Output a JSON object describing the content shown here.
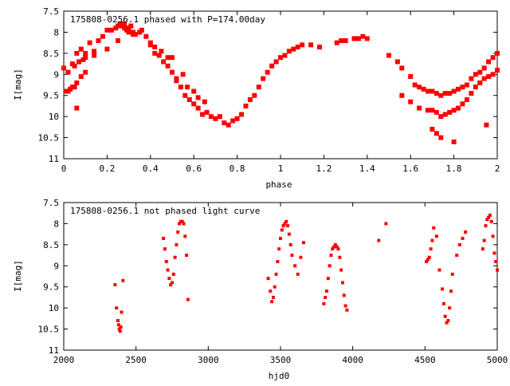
{
  "chart_data": [
    {
      "type": "scatter",
      "title": "175808-0256.1 phased with P=174.00day",
      "xlabel": "phase",
      "ylabel": "I[mag]",
      "xlim": [
        0,
        2
      ],
      "ylim": [
        7.5,
        11
      ],
      "y_inverted": true,
      "grid": false,
      "marker_color": "#ff0000",
      "x_ticks": [
        "0",
        "0.2",
        "0.4",
        "0.6",
        "0.8",
        "1",
        "1.2",
        "1.4",
        "1.6",
        "1.8",
        "2"
      ],
      "y_ticks": [
        "7.5",
        "8",
        "8.5",
        "9",
        "9.5",
        "10",
        "10.5",
        "11"
      ],
      "series": [
        {
          "x": [
            0.0,
            0.01,
            0.02,
            0.03,
            0.04,
            0.05,
            0.06,
            0.07,
            0.08,
            0.09,
            0.1,
            0.12,
            0.14,
            0.16,
            0.18,
            0.2,
            0.22,
            0.24,
            0.25,
            0.26,
            0.27,
            0.28,
            0.29,
            0.3,
            0.31,
            0.32,
            0.33,
            0.35,
            0.36,
            0.38,
            0.4,
            0.42,
            0.44,
            0.46,
            0.48,
            0.5,
            0.52,
            0.54,
            0.56,
            0.58,
            0.6,
            0.62,
            0.64,
            0.66,
            0.68,
            0.7,
            0.72,
            0.74,
            0.76,
            0.78,
            0.8,
            0.82,
            0.84,
            0.86,
            0.88,
            0.9,
            0.92,
            0.94,
            0.96,
            0.98,
            1.0,
            1.02,
            1.04,
            1.06,
            1.08,
            1.1,
            1.14,
            1.18,
            1.26,
            1.28,
            1.3,
            1.34,
            1.36,
            1.38,
            1.4,
            1.5,
            1.54,
            1.56,
            1.6,
            1.62,
            1.64,
            1.66,
            1.68,
            1.7,
            1.72,
            1.74,
            1.76,
            1.78,
            1.8,
            1.82,
            1.84,
            1.86,
            1.88,
            1.9,
            1.92,
            1.94,
            1.96,
            1.98,
            2.0,
            0.05,
            0.07,
            0.1,
            0.14,
            0.2,
            0.25,
            0.3,
            0.35,
            0.4,
            0.45,
            0.5,
            0.55,
            0.6,
            0.65,
            1.56,
            1.6,
            1.64,
            1.68,
            1.7,
            1.72,
            1.74,
            1.76,
            1.78,
            1.8,
            1.82,
            1.84,
            1.86,
            1.88,
            1.9,
            1.92,
            1.94,
            1.96,
            1.98,
            2.0,
            0.02,
            0.04,
            0.06,
            0.08,
            0.1,
            0.06,
            0.28,
            0.32,
            0.42,
            0.48,
            0.52,
            0.57,
            0.62,
            1.7,
            1.72,
            1.74,
            1.8,
            1.95
          ],
          "y": [
            8.85,
            9.4,
            8.95,
            9.35,
            8.75,
            9.3,
            8.5,
            8.7,
            8.4,
            8.65,
            8.5,
            8.25,
            8.45,
            8.2,
            8.1,
            7.95,
            7.95,
            7.9,
            7.85,
            7.8,
            7.85,
            7.9,
            7.95,
            7.9,
            7.85,
            8.0,
            8.05,
            8.0,
            7.95,
            8.1,
            8.25,
            8.5,
            8.55,
            8.7,
            8.8,
            8.95,
            9.1,
            9.3,
            9.5,
            9.6,
            9.7,
            9.8,
            9.95,
            9.9,
            10.0,
            10.05,
            10.0,
            10.15,
            10.2,
            10.1,
            10.05,
            9.95,
            9.75,
            9.6,
            9.5,
            9.3,
            9.1,
            8.95,
            8.8,
            8.7,
            8.6,
            8.55,
            8.45,
            8.4,
            8.35,
            8.3,
            8.3,
            8.35,
            8.25,
            8.2,
            8.2,
            8.15,
            8.15,
            8.1,
            8.15,
            8.55,
            8.7,
            8.85,
            9.05,
            9.25,
            9.3,
            9.35,
            9.4,
            9.4,
            9.45,
            9.5,
            9.45,
            9.45,
            9.4,
            9.35,
            9.3,
            9.25,
            9.1,
            9.0,
            8.95,
            8.85,
            8.7,
            8.6,
            8.5,
            8.8,
            8.7,
            8.6,
            8.55,
            8.4,
            8.2,
            8.0,
            8.0,
            8.3,
            8.45,
            8.6,
            9.0,
            9.4,
            9.65,
            9.5,
            9.65,
            9.8,
            9.85,
            9.85,
            9.9,
            10.0,
            9.95,
            9.9,
            9.85,
            9.8,
            9.7,
            9.6,
            9.45,
            9.3,
            9.2,
            9.1,
            9.05,
            9.0,
            8.9,
            9.4,
            9.3,
            9.2,
            9.05,
            8.95,
            9.8,
            7.8,
            8.05,
            8.35,
            8.6,
            9.15,
            9.3,
            9.55,
            10.3,
            10.4,
            10.5,
            10.6,
            10.2
          ],
          "name": ""
        }
      ]
    },
    {
      "type": "scatter",
      "title": "175808-0256.1 not phased light curve",
      "xlabel": "hjd0",
      "ylabel": "I[mag]",
      "xlim": [
        2000,
        5000
      ],
      "ylim": [
        7.5,
        11
      ],
      "y_inverted": true,
      "grid": false,
      "marker_color": "#ff0000",
      "x_ticks": [
        "2000",
        "2500",
        "3000",
        "3500",
        "4000",
        "4500",
        "5000"
      ],
      "y_ticks": [
        "7.5",
        "8",
        "8.5",
        "9",
        "9.5",
        "10",
        "10.5",
        "11"
      ],
      "series": [
        {
          "x": [
            2355,
            2365,
            2375,
            2380,
            2385,
            2390,
            2395,
            2400,
            2410,
            2690,
            2700,
            2710,
            2720,
            2730,
            2740,
            2750,
            2760,
            2770,
            2780,
            2790,
            2800,
            2810,
            2820,
            2830,
            2840,
            2850,
            2860,
            3415,
            3430,
            3440,
            3450,
            3460,
            3470,
            3480,
            3490,
            3500,
            3510,
            3520,
            3530,
            3540,
            3550,
            3560,
            3570,
            3580,
            3600,
            3620,
            3640,
            3660,
            3800,
            3810,
            3820,
            3830,
            3840,
            3850,
            3860,
            3870,
            3880,
            3890,
            3900,
            3910,
            3920,
            3930,
            3940,
            3950,
            3960,
            4180,
            4230,
            4510,
            4520,
            4530,
            4540,
            4550,
            4560,
            4580,
            4600,
            4620,
            4630,
            4640,
            4650,
            4660,
            4670,
            4680,
            4690,
            4720,
            4740,
            4760,
            4780,
            4900,
            4910,
            4920,
            4930,
            4940,
            4950,
            4960,
            4970,
            4980,
            4990,
            5000
          ],
          "y": [
            9.45,
            10.0,
            10.3,
            10.4,
            10.5,
            10.55,
            10.45,
            10.1,
            9.35,
            8.35,
            8.6,
            8.9,
            9.1,
            9.3,
            9.45,
            9.4,
            9.2,
            8.8,
            8.5,
            8.2,
            8.0,
            7.95,
            7.95,
            8.0,
            8.3,
            8.75,
            9.8,
            9.3,
            9.6,
            9.85,
            9.75,
            9.5,
            9.2,
            8.9,
            8.6,
            8.35,
            8.15,
            8.05,
            8.0,
            7.95,
            8.05,
            8.25,
            8.5,
            8.75,
            9.0,
            9.2,
            8.8,
            8.45,
            9.9,
            9.75,
            9.6,
            9.3,
            9.0,
            8.75,
            8.6,
            8.55,
            8.5,
            8.55,
            8.6,
            8.8,
            9.1,
            9.4,
            9.7,
            9.95,
            10.05,
            8.4,
            8.0,
            8.9,
            8.85,
            8.8,
            8.6,
            8.4,
            8.1,
            8.3,
            9.1,
            9.55,
            9.9,
            10.2,
            10.35,
            10.3,
            10.0,
            9.6,
            9.2,
            8.75,
            8.5,
            8.35,
            8.2,
            8.6,
            8.4,
            8.05,
            7.9,
            7.85,
            7.8,
            7.95,
            8.3,
            8.7,
            8.9,
            9.1
          ],
          "name": ""
        }
      ]
    }
  ]
}
